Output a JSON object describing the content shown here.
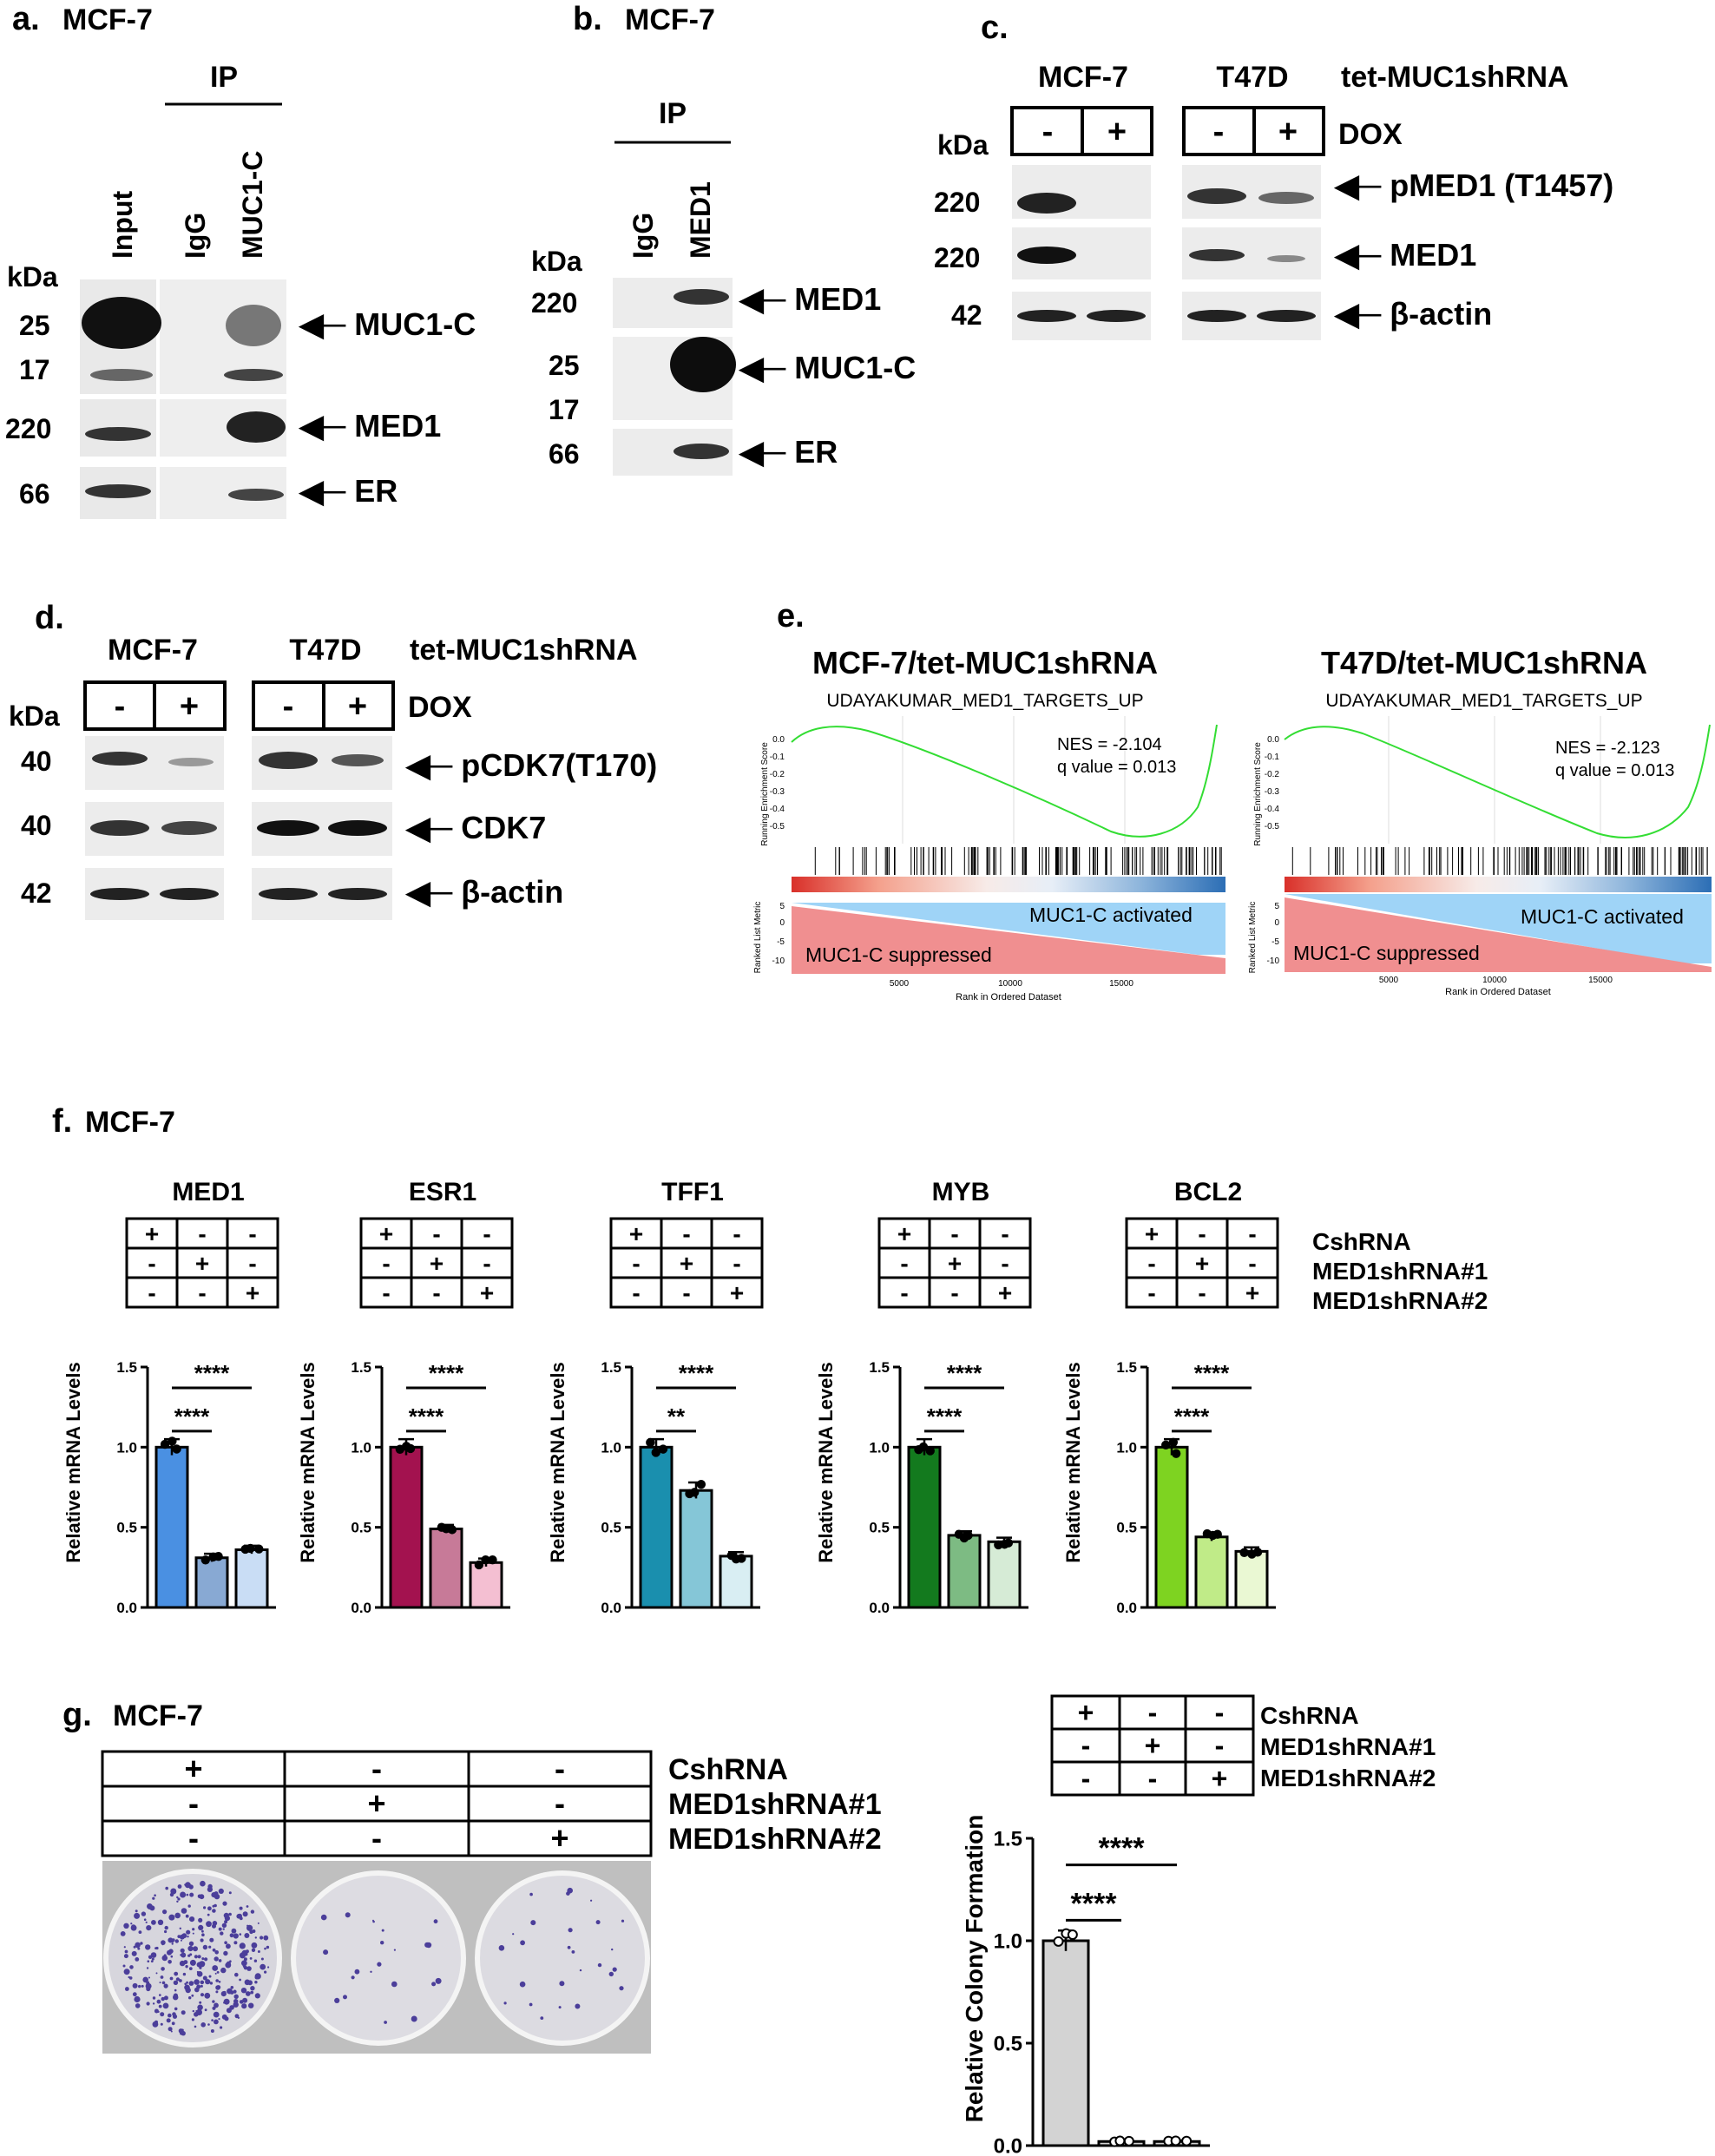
{
  "panels": {
    "a": {
      "letter": "a.",
      "cell": "MCF-7",
      "ip": "IP",
      "lanes": [
        "Input",
        "IgG",
        "MUC1-C"
      ],
      "kda": "kDa",
      "markers": [
        "25",
        "17",
        "220",
        "66"
      ],
      "bands": [
        "MUC1-C",
        "MED1",
        "ER"
      ]
    },
    "b": {
      "letter": "b.",
      "cell": "MCF-7",
      "ip": "IP",
      "lanes": [
        "IgG",
        "MED1"
      ],
      "kda": "kDa",
      "markers": [
        "220",
        "25",
        "17",
        "66"
      ],
      "bands": [
        "MED1",
        "MUC1-C",
        "ER"
      ]
    },
    "c": {
      "letter": "c.",
      "cells": [
        "MCF-7",
        "T47D"
      ],
      "construct": "tet-MUC1shRNA",
      "signs": [
        "-",
        "+",
        "-",
        "+"
      ],
      "dox": "DOX",
      "kda": "kDa",
      "markers": [
        "220",
        "220",
        "42"
      ],
      "bands": [
        "pMED1 (T1457)",
        "MED1",
        "β-actin"
      ]
    },
    "d": {
      "letter": "d.",
      "cells": [
        "MCF-7",
        "T47D"
      ],
      "construct": "tet-MUC1shRNA",
      "signs": [
        "-",
        "+",
        "-",
        "+"
      ],
      "dox": "DOX",
      "kda": "kDa",
      "markers": [
        "40",
        "40",
        "42"
      ],
      "bands": [
        "pCDK7(T170)",
        "CDK7",
        "β-actin"
      ]
    },
    "e": {
      "letter": "e.",
      "plots": [
        {
          "title": "MCF-7/tet-MUC1shRNA",
          "gene_set": "UDAYAKUMAR_MED1_TARGETS_UP",
          "nes": "NES = -2.104",
          "q": "q value = 0.013"
        },
        {
          "title": "T47D/tet-MUC1shRNA",
          "gene_set": "UDAYAKUMAR_MED1_TARGETS_UP",
          "nes": "NES = -2.123",
          "q": "q value = 0.013"
        }
      ],
      "res_label": "Running Enrichment Score",
      "res_ticks": [
        "0.0",
        "-0.1",
        "-0.2",
        "-0.3",
        "-0.4",
        "-0.5"
      ],
      "metric_label": "Ranked List Metric",
      "metric_ticks": [
        "5",
        "0",
        "-5",
        "-10"
      ],
      "activated": "MUC1-C activated",
      "suppressed": "MUC1-C suppressed",
      "x_ticks": [
        "5000",
        "10000",
        "15000"
      ],
      "x_label": "Rank in Ordered Dataset"
    },
    "f": {
      "letter": "f.",
      "cell": "MCF-7",
      "condition_labels": [
        "CshRNA",
        "MED1shRNA#1",
        "MED1shRNA#2"
      ],
      "sign_grid": [
        [
          "+",
          "-",
          "-"
        ],
        [
          "-",
          "+",
          "-"
        ],
        [
          "-",
          "-",
          "+"
        ]
      ],
      "ylabel": "Relative mRNA Levels",
      "y_ticks": [
        "0.0",
        "0.5",
        "1.0",
        "1.5"
      ]
    },
    "g": {
      "letter": "g.",
      "cell": "MCF-7",
      "condition_labels": [
        "CshRNA",
        "MED1shRNA#1",
        "MED1shRNA#2"
      ],
      "sign_grid": [
        [
          "+",
          "-",
          "-"
        ],
        [
          "-",
          "+",
          "-"
        ],
        [
          "-",
          "-",
          "+"
        ]
      ],
      "ylabel": "Relative Colony Formation",
      "y_ticks": [
        "0.0",
        "0.5",
        "1.0",
        "1.5"
      ]
    }
  },
  "chart_data": [
    {
      "type": "bar",
      "title": "MED1",
      "ylabel": "Relative mRNA Levels",
      "ylim": [
        0,
        1.5
      ],
      "values": [
        1.0,
        0.31,
        0.36
      ],
      "colors": [
        "#4a90e2",
        "#88a9d3",
        "#c9ddf5"
      ],
      "significance": [
        {
          "pair": [
            1,
            2
          ],
          "label": "****"
        },
        {
          "pair": [
            1,
            3
          ],
          "label": "****"
        }
      ]
    },
    {
      "type": "bar",
      "title": "ESR1",
      "ylabel": "Relative mRNA Levels",
      "ylim": [
        0,
        1.5
      ],
      "values": [
        1.0,
        0.49,
        0.28
      ],
      "colors": [
        "#a3124f",
        "#c77a98",
        "#f4bfd2"
      ],
      "significance": [
        {
          "pair": [
            1,
            2
          ],
          "label": "****"
        },
        {
          "pair": [
            1,
            3
          ],
          "label": "****"
        }
      ]
    },
    {
      "type": "bar",
      "title": "TFF1",
      "ylabel": "Relative mRNA Levels",
      "ylim": [
        0,
        1.5
      ],
      "values": [
        1.0,
        0.73,
        0.32
      ],
      "colors": [
        "#1a8fae",
        "#85c6d7",
        "#d9eef3"
      ],
      "significance": [
        {
          "pair": [
            1,
            2
          ],
          "label": "**"
        },
        {
          "pair": [
            1,
            3
          ],
          "label": "****"
        }
      ]
    },
    {
      "type": "bar",
      "title": "MYB",
      "ylabel": "Relative mRNA Levels",
      "ylim": [
        0,
        1.5
      ],
      "values": [
        1.0,
        0.45,
        0.41
      ],
      "colors": [
        "#137a1e",
        "#7dbb83",
        "#d6ebd6"
      ],
      "significance": [
        {
          "pair": [
            1,
            2
          ],
          "label": "****"
        },
        {
          "pair": [
            1,
            3
          ],
          "label": "****"
        }
      ]
    },
    {
      "type": "bar",
      "title": "BCL2",
      "ylabel": "Relative mRNA Levels",
      "ylim": [
        0,
        1.5
      ],
      "values": [
        1.0,
        0.44,
        0.35
      ],
      "colors": [
        "#7ed321",
        "#c0eb88",
        "#eaf8d3"
      ],
      "significance": [
        {
          "pair": [
            1,
            2
          ],
          "label": "****"
        },
        {
          "pair": [
            1,
            3
          ],
          "label": "****"
        }
      ]
    },
    {
      "type": "bar",
      "title": "",
      "ylabel": "Relative Colony Formation",
      "ylim": [
        0,
        1.5
      ],
      "values": [
        1.0,
        0.02,
        0.02
      ],
      "colors": [
        "#d3d3d3",
        "#d3d3d3",
        "#d3d3d3"
      ],
      "significance": [
        {
          "pair": [
            1,
            2
          ],
          "label": "****"
        },
        {
          "pair": [
            1,
            3
          ],
          "label": "****"
        }
      ]
    }
  ]
}
